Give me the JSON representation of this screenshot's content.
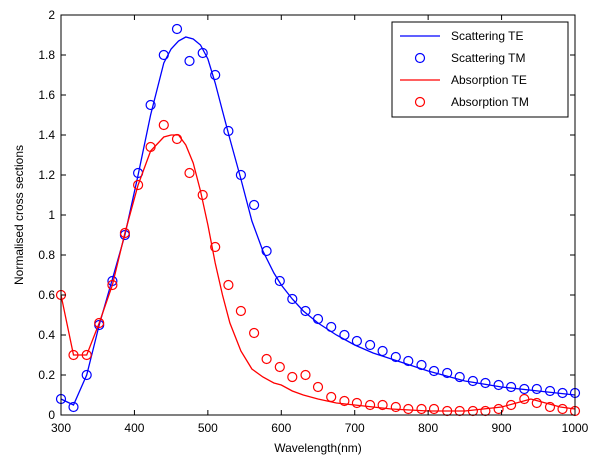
{
  "chart_data": {
    "type": "line",
    "xlabel": "Wavelength(nm)",
    "ylabel": "Normalised cross sections",
    "xlim": [
      300,
      1000
    ],
    "ylim": [
      0,
      2
    ],
    "xticks": [
      300,
      400,
      500,
      600,
      700,
      800,
      900,
      1000
    ],
    "yticks": [
      0,
      0.2,
      0.4,
      0.6,
      0.8,
      1,
      1.2,
      1.4,
      1.6,
      1.8,
      2
    ],
    "xtick_labels": [
      "300",
      "400",
      "500",
      "600",
      "700",
      "800",
      "900",
      "1000"
    ],
    "ytick_labels": [
      "0",
      "0.2",
      "0.4",
      "0.6",
      "0.8",
      "1",
      "1.2",
      "1.4",
      "1.6",
      "1.8",
      "2"
    ],
    "grid": false,
    "legend_position": "top-right",
    "series": [
      {
        "name": "Scattering TE",
        "style": "line",
        "color": "#0000ff",
        "x": [
          300,
          317,
          335,
          352,
          370,
          387,
          405,
          422,
          440,
          450,
          460,
          470,
          480,
          490,
          500,
          510,
          520,
          530,
          545,
          560,
          575,
          590,
          600,
          615,
          630,
          650,
          675,
          700,
          725,
          750,
          800,
          850,
          900,
          950,
          1000
        ],
        "y": [
          0.08,
          0.05,
          0.2,
          0.45,
          0.68,
          0.9,
          1.2,
          1.5,
          1.76,
          1.83,
          1.87,
          1.89,
          1.88,
          1.85,
          1.78,
          1.66,
          1.52,
          1.38,
          1.18,
          0.97,
          0.82,
          0.71,
          0.65,
          0.58,
          0.52,
          0.46,
          0.4,
          0.35,
          0.31,
          0.28,
          0.22,
          0.17,
          0.14,
          0.12,
          0.1
        ]
      },
      {
        "name": "Scattering TM",
        "style": "markers",
        "marker": "circle",
        "color": "#0000ff",
        "x": [
          300,
          317,
          335,
          352,
          370,
          387,
          405,
          422,
          440,
          458,
          475,
          493,
          510,
          528,
          545,
          563,
          580,
          598,
          615,
          633,
          650,
          668,
          686,
          703,
          721,
          738,
          756,
          773,
          791,
          808,
          826,
          843,
          861,
          878,
          896,
          913,
          931,
          948,
          966,
          983,
          1000
        ],
        "y": [
          0.08,
          0.04,
          0.2,
          0.45,
          0.67,
          0.9,
          1.21,
          1.55,
          1.8,
          1.93,
          1.77,
          1.81,
          1.7,
          1.42,
          1.2,
          1.05,
          0.82,
          0.67,
          0.58,
          0.52,
          0.48,
          0.44,
          0.4,
          0.37,
          0.35,
          0.32,
          0.29,
          0.27,
          0.25,
          0.22,
          0.21,
          0.19,
          0.17,
          0.16,
          0.15,
          0.14,
          0.13,
          0.13,
          0.12,
          0.11,
          0.11
        ]
      },
      {
        "name": "Absorption TE",
        "style": "line",
        "color": "#ff0000",
        "x": [
          300,
          317,
          335,
          352,
          370,
          387,
          405,
          422,
          440,
          450,
          460,
          470,
          480,
          490,
          500,
          510,
          520,
          530,
          545,
          560,
          575,
          590,
          600,
          615,
          630,
          650,
          675,
          700,
          725,
          750,
          800,
          850,
          900,
          920,
          940,
          960,
          980,
          1000
        ],
        "y": [
          0.6,
          0.3,
          0.3,
          0.46,
          0.65,
          0.91,
          1.15,
          1.32,
          1.39,
          1.4,
          1.4,
          1.35,
          1.26,
          1.12,
          0.95,
          0.76,
          0.6,
          0.46,
          0.32,
          0.23,
          0.19,
          0.16,
          0.15,
          0.12,
          0.1,
          0.08,
          0.06,
          0.05,
          0.04,
          0.03,
          0.02,
          0.02,
          0.04,
          0.06,
          0.08,
          0.06,
          0.04,
          0.03
        ]
      },
      {
        "name": "Absorption TM",
        "style": "markers",
        "marker": "circle",
        "color": "#ff0000",
        "x": [
          300,
          317,
          335,
          352,
          370,
          387,
          405,
          422,
          440,
          458,
          475,
          493,
          510,
          528,
          545,
          563,
          580,
          598,
          615,
          633,
          650,
          668,
          686,
          703,
          721,
          738,
          756,
          773,
          791,
          808,
          826,
          843,
          861,
          878,
          896,
          913,
          931,
          948,
          966,
          983,
          1000
        ],
        "y": [
          0.6,
          0.3,
          0.3,
          0.46,
          0.65,
          0.91,
          1.15,
          1.34,
          1.45,
          1.38,
          1.21,
          1.1,
          0.84,
          0.65,
          0.52,
          0.41,
          0.28,
          0.24,
          0.19,
          0.2,
          0.14,
          0.09,
          0.07,
          0.06,
          0.05,
          0.05,
          0.04,
          0.03,
          0.03,
          0.03,
          0.02,
          0.02,
          0.02,
          0.02,
          0.03,
          0.05,
          0.08,
          0.06,
          0.04,
          0.03,
          0.02
        ]
      }
    ]
  }
}
